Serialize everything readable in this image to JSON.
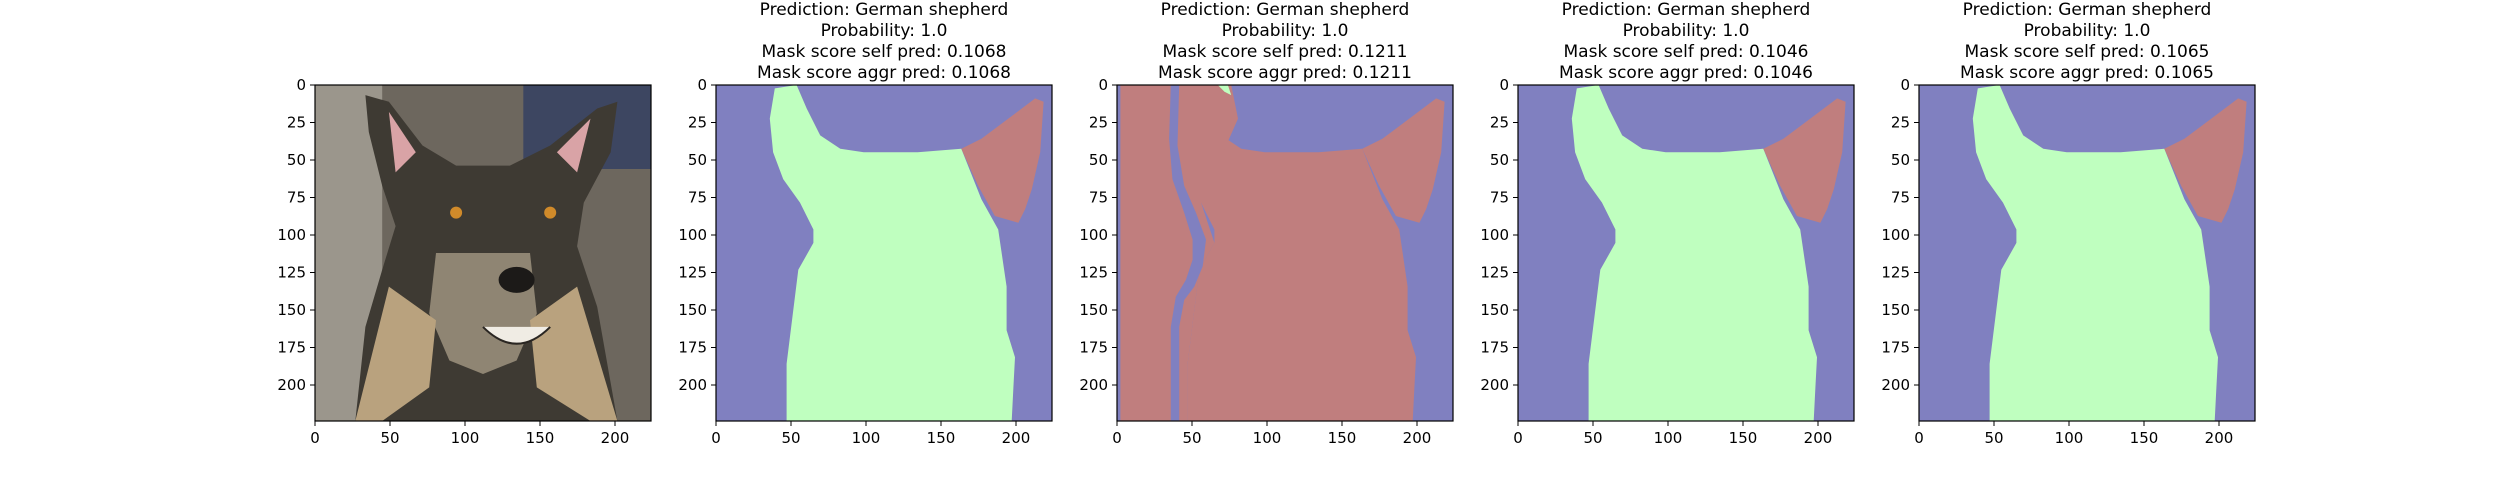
{
  "colors": {
    "background": "#808080",
    "foreground": "#bfffbf",
    "ears": "#c07e7e",
    "mask_background": "#8080c0",
    "axis": "#000000"
  },
  "chart_data": [
    {
      "type": "image",
      "panel": "photo",
      "content": "German shepherd dog photo",
      "title_lines": [],
      "xticks": [
        "0",
        "50",
        "100",
        "150",
        "200"
      ],
      "yticks": [
        "0",
        "25",
        "50",
        "75",
        "100",
        "125",
        "150",
        "175",
        "200"
      ],
      "xlim": [
        0,
        224
      ],
      "ylim": [
        224,
        0
      ]
    },
    {
      "type": "heatmap",
      "panel": "mask",
      "mode": "normal",
      "title_lines": [
        "Prediction: German shepherd",
        "Probability: 1.0",
        "Mask score self pred: 0.1068",
        "Mask score aggr pred: 0.1068"
      ],
      "prediction": "German shepherd",
      "probability": 1.0,
      "mask_score_self_pred": 0.1068,
      "mask_score_aggr_pred": 0.1068,
      "xticks": [
        "0",
        "50",
        "100",
        "150",
        "200"
      ],
      "yticks": [
        "0",
        "25",
        "50",
        "75",
        "100",
        "125",
        "150",
        "175",
        "200"
      ],
      "xlim": [
        0,
        224
      ],
      "ylim": [
        224,
        0
      ]
    },
    {
      "type": "heatmap",
      "panel": "mask",
      "mode": "inverted",
      "title_lines": [
        "Prediction: German shepherd",
        "Probability: 1.0",
        "Mask score self pred: 0.1211",
        "Mask score aggr pred: 0.1211"
      ],
      "prediction": "German shepherd",
      "probability": 1.0,
      "mask_score_self_pred": 0.1211,
      "mask_score_aggr_pred": 0.1211,
      "xticks": [
        "0",
        "50",
        "100",
        "150",
        "200"
      ],
      "yticks": [
        "0",
        "25",
        "50",
        "75",
        "100",
        "125",
        "150",
        "175",
        "200"
      ],
      "xlim": [
        0,
        224
      ],
      "ylim": [
        224,
        0
      ]
    },
    {
      "type": "heatmap",
      "panel": "mask",
      "mode": "normal",
      "title_lines": [
        "Prediction: German shepherd",
        "Probability: 1.0",
        "Mask score self pred: 0.1046",
        "Mask score aggr pred: 0.1046"
      ],
      "prediction": "German shepherd",
      "probability": 1.0,
      "mask_score_self_pred": 0.1046,
      "mask_score_aggr_pred": 0.1046,
      "xticks": [
        "0",
        "50",
        "100",
        "150",
        "200"
      ],
      "yticks": [
        "0",
        "25",
        "50",
        "75",
        "100",
        "125",
        "150",
        "175",
        "200"
      ],
      "xlim": [
        0,
        224
      ],
      "ylim": [
        224,
        0
      ]
    },
    {
      "type": "heatmap",
      "panel": "mask",
      "mode": "normal",
      "title_lines": [
        "Prediction: German shepherd",
        "Probability: 1.0",
        "Mask score self pred: 0.1065",
        "Mask score aggr pred: 0.1065"
      ],
      "prediction": "German shepherd",
      "probability": 1.0,
      "mask_score_self_pred": 0.1065,
      "mask_score_aggr_pred": 0.1065,
      "xticks": [
        "0",
        "50",
        "100",
        "150",
        "200"
      ],
      "yticks": [
        "0",
        "25",
        "50",
        "75",
        "100",
        "125",
        "150",
        "175",
        "200"
      ],
      "xlim": [
        0,
        224
      ],
      "ylim": [
        224,
        0
      ]
    }
  ]
}
